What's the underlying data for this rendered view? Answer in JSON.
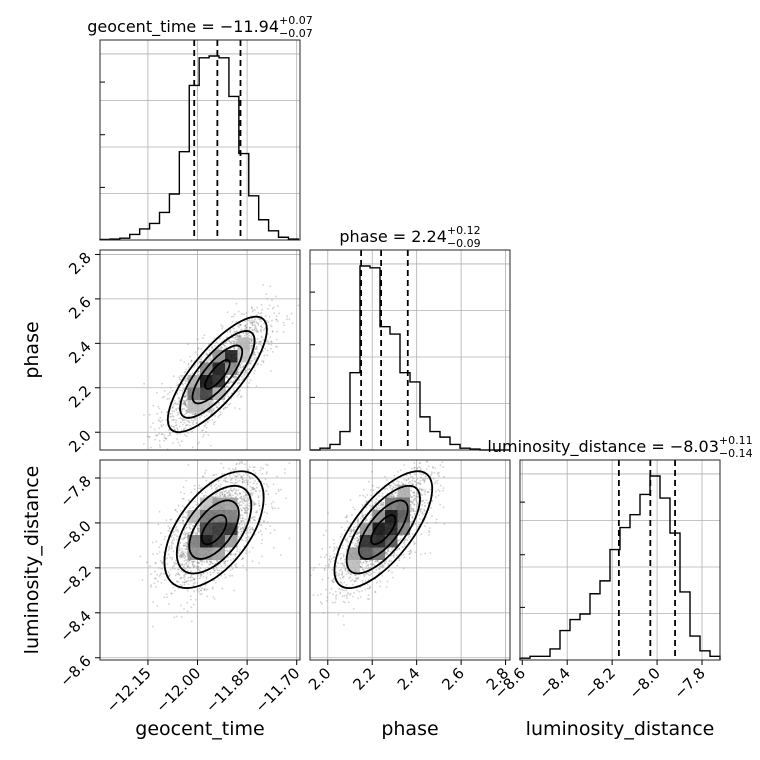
{
  "chart_data": {
    "type": "corner",
    "parameters": [
      {
        "label": "geocent_time",
        "title": {
          "prefix": "geocent_time = ",
          "value": "−11.94",
          "plus": "+0.07",
          "minus": "−0.07"
        },
        "median": -11.94,
        "q16": -12.01,
        "q84": -11.87,
        "xlim": [
          -12.295,
          -11.69
        ],
        "ticks": [
          -12.15,
          -12.0,
          -11.85,
          -11.7
        ],
        "tick_labels": [
          "−12.15",
          "−12.00",
          "−11.85",
          "−11.70"
        ],
        "hist": {
          "edges": [
            -12.295,
            -12.265,
            -12.235,
            -12.205,
            -12.175,
            -12.145,
            -12.115,
            -12.085,
            -12.055,
            -12.025,
            -11.995,
            -11.965,
            -11.935,
            -11.905,
            -11.875,
            -11.845,
            -11.815,
            -11.785,
            -11.755,
            -11.725,
            -11.695
          ],
          "counts": [
            0.3,
            0.5,
            1,
            3,
            6,
            9,
            15,
            25,
            48,
            84,
            99,
            100,
            99,
            78,
            47,
            24,
            11,
            5,
            1.5,
            0.5
          ]
        }
      },
      {
        "label": "phase",
        "title": {
          "prefix": "phase = ",
          "value": "2.24",
          "plus": "+0.12",
          "minus": "−0.09"
        },
        "median": 2.24,
        "q16": 2.15,
        "q84": 2.36,
        "xlim": [
          1.92,
          2.82
        ],
        "ticks": [
          2.0,
          2.2,
          2.4,
          2.6,
          2.8
        ],
        "tick_labels": [
          "2.0",
          "2.2",
          "2.4",
          "2.6",
          "2.8"
        ],
        "hist": {
          "edges": [
            1.92,
            1.965,
            2.01,
            2.055,
            2.1,
            2.145,
            2.19,
            2.235,
            2.28,
            2.325,
            2.37,
            2.415,
            2.46,
            2.505,
            2.55,
            2.595,
            2.64,
            2.685,
            2.73,
            2.775,
            2.82
          ],
          "counts": [
            0,
            1,
            3,
            10,
            42,
            100,
            99,
            67,
            63,
            42,
            37,
            18,
            10,
            7,
            3,
            1,
            0.5,
            0,
            0,
            0
          ]
        }
      },
      {
        "label": "luminosity_distance",
        "title": {
          "prefix": "luminosity_distance = ",
          "value": "−8.03",
          "plus": "+0.11",
          "minus": "−0.14"
        },
        "median": -8.03,
        "q16": -8.17,
        "q84": -7.92,
        "xlim": [
          -8.61,
          -7.72
        ],
        "ticks": [
          -8.6,
          -8.4,
          -8.2,
          -8.0,
          -7.8
        ],
        "tick_labels": [
          "−8.6",
          "−8.4",
          "−8.2",
          "−8.0",
          "−7.8"
        ],
        "hist": {
          "edges": [
            -8.61,
            -8.5655,
            -8.521,
            -8.4765,
            -8.432,
            -8.3875,
            -8.343,
            -8.2985,
            -8.254,
            -8.2095,
            -8.165,
            -8.1205,
            -8.076,
            -8.0315,
            -7.987,
            -7.9425,
            -7.898,
            -7.8535,
            -7.809,
            -7.7645,
            -7.72
          ],
          "counts": [
            1,
            2,
            2,
            6,
            16,
            22,
            25,
            36,
            43,
            60,
            72,
            79,
            90,
            100,
            88,
            69,
            37,
            13,
            5,
            2
          ]
        }
      }
    ],
    "pairs": [
      {
        "x": 0,
        "y": 1,
        "mean": [
          -11.94,
          2.26
        ],
        "sd": [
          0.075,
          0.13
        ],
        "corr": 0.78,
        "n": 2200
      },
      {
        "x": 0,
        "y": 2,
        "mean": [
          -11.95,
          -8.03
        ],
        "sd": [
          0.075,
          0.13
        ],
        "corr": 0.55,
        "n": 2200
      },
      {
        "x": 1,
        "y": 2,
        "mean": [
          2.25,
          -8.03
        ],
        "sd": [
          0.11,
          0.13
        ],
        "corr": 0.7,
        "n": 2200
      }
    ],
    "ylim": {
      "1": [
        1.92,
        2.82
      ],
      "2": [
        -8.61,
        -7.72
      ]
    },
    "y_ticks": {
      "1": {
        "values": [
          2.0,
          2.2,
          2.4,
          2.6,
          2.8
        ],
        "labels": [
          "2.0",
          "2.2",
          "2.4",
          "2.6",
          "2.8"
        ]
      },
      "2": {
        "values": [
          -8.6,
          -8.4,
          -8.2,
          -8.0,
          -7.8
        ],
        "labels": [
          "−8.6",
          "−8.4",
          "−8.2",
          "−8.0",
          "−7.8"
        ]
      }
    },
    "grid": true,
    "colors": {
      "hist": "#000000",
      "points": "#7f7f7f",
      "contour": "#000000",
      "grid": "#b0b0b0"
    }
  }
}
